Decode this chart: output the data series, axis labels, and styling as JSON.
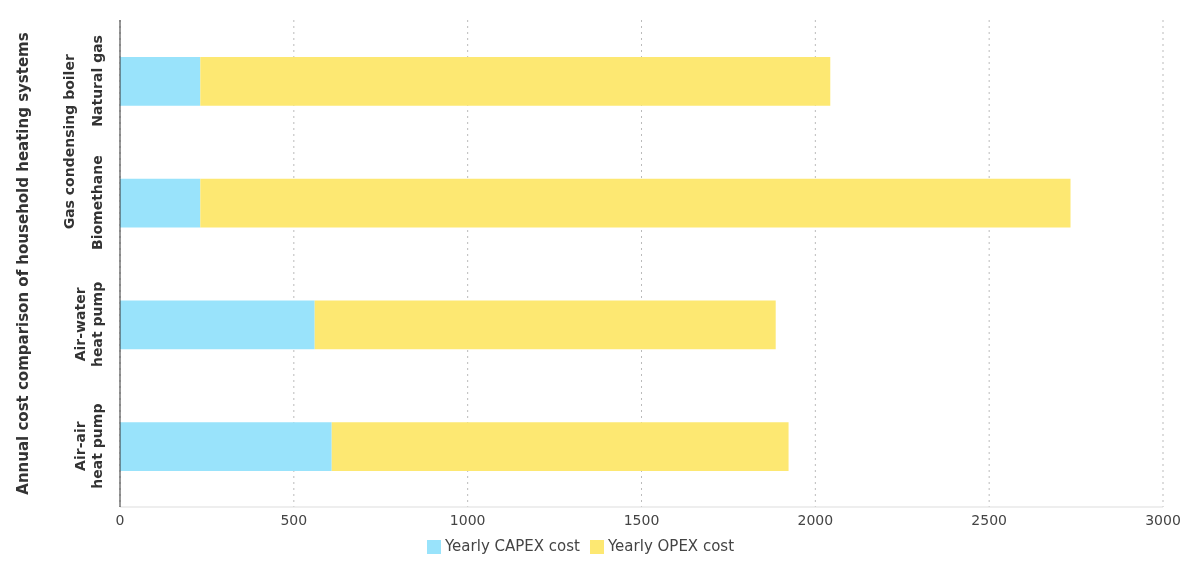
{
  "chart_data": {
    "type": "bar",
    "orientation": "horizontal",
    "stacked": true,
    "ylabel": "Annual cost comparison of household heating systems",
    "annotations": [
      "Gas condensing boiler"
    ],
    "categories": [
      "Natural gas",
      "Biomethane",
      "Air-water heat pump",
      "Air-air heat pump"
    ],
    "series": [
      {
        "name": "Yearly CAPEX cost",
        "color": "#99e3fb",
        "values": [
          231,
          231,
          560,
          609
        ]
      },
      {
        "name": "Yearly OPEX cost",
        "color": "#fde872",
        "values": [
          1812,
          2503,
          1326,
          1314
        ]
      }
    ],
    "xlim": [
      0,
      3000
    ],
    "xticks": [
      0,
      500,
      1000,
      1500,
      2000,
      2500,
      3000
    ],
    "grid": "x",
    "legend": "bottom"
  }
}
